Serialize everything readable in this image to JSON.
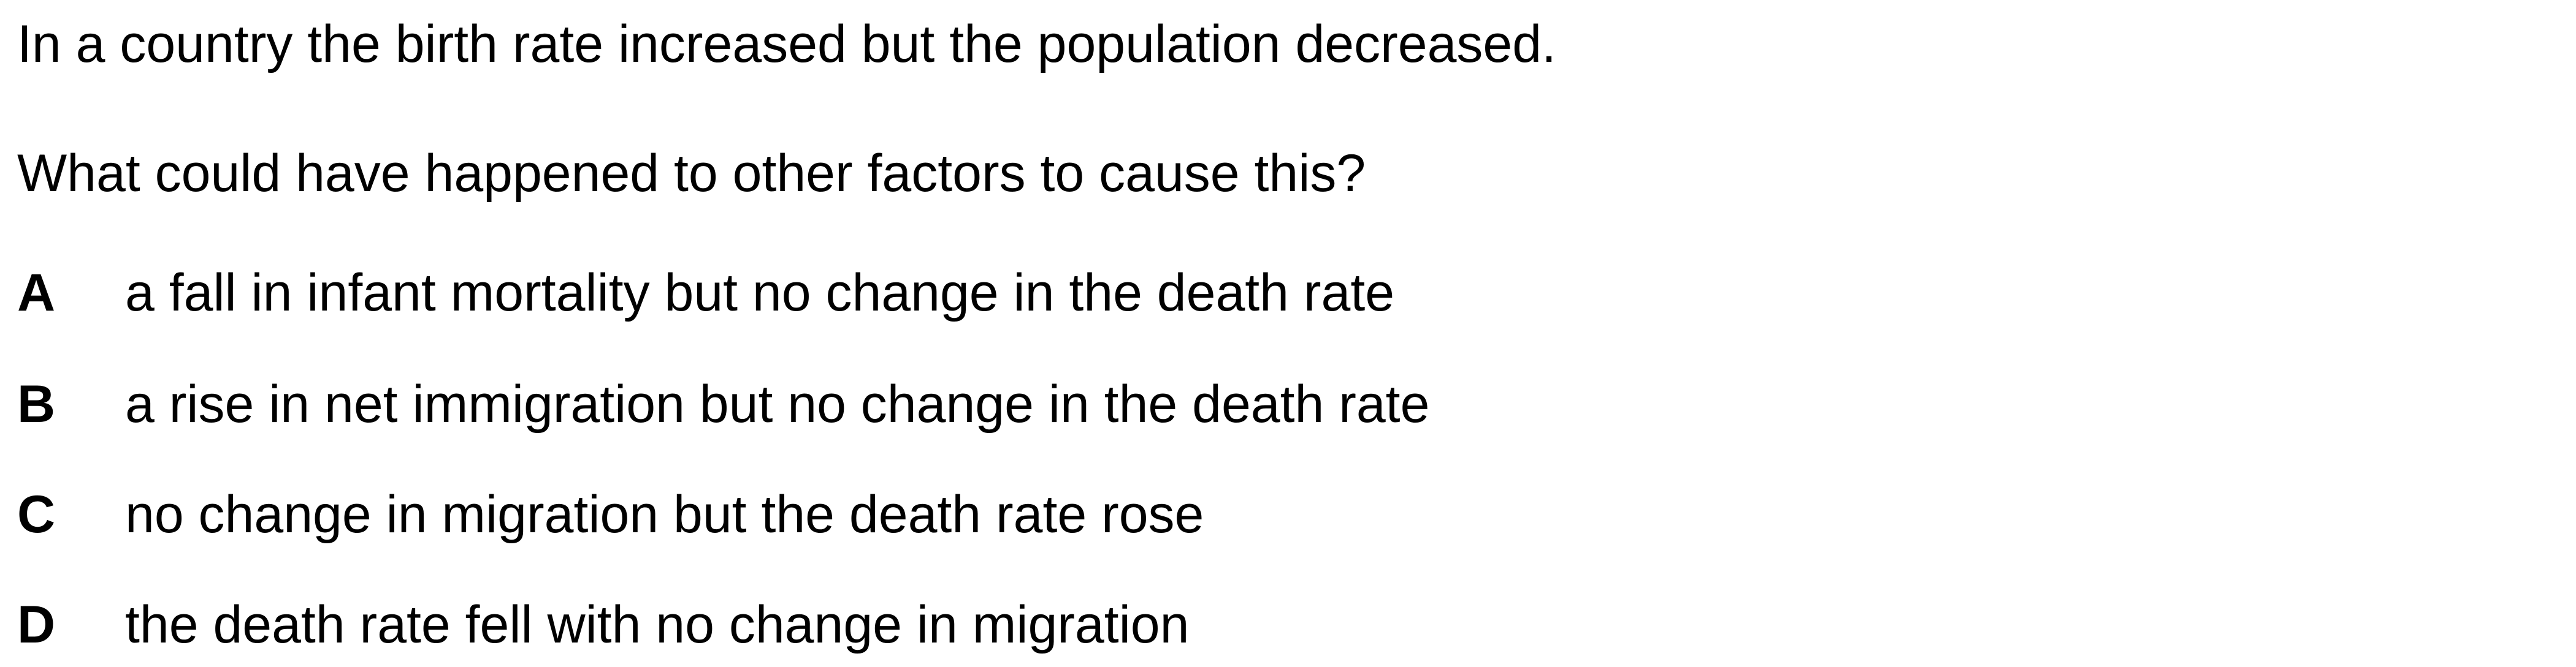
{
  "question": {
    "stem": "In a country the birth rate increased but the population decreased.",
    "prompt": "What could have happened to other factors to cause this?"
  },
  "options": [
    {
      "letter": "A",
      "text": "a fall in infant mortality but no change in the death rate"
    },
    {
      "letter": "B",
      "text": "a rise in net immigration but no change in the death rate"
    },
    {
      "letter": "C",
      "text": "no change in migration but the death rate rose"
    },
    {
      "letter": "D",
      "text": "the death rate fell with no change in migration"
    }
  ]
}
